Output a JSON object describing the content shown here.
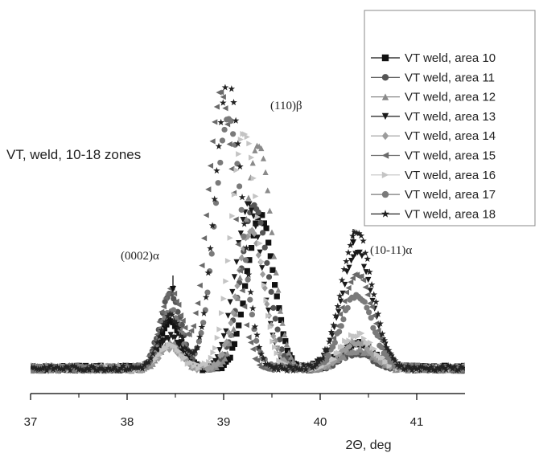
{
  "chart_data": {
    "type": "scatter",
    "title": "",
    "xlabel": "2Θ, deg",
    "ylabel": "",
    "xlim": [
      37,
      41.5
    ],
    "ylim": [
      0,
      1.1
    ],
    "x_ticks": [
      "37",
      "38",
      "39",
      "40",
      "41"
    ],
    "grid": false,
    "legend_position": "top-right",
    "annotations": {
      "zones": "VT, weld, 10-18 zones",
      "peak_beta": "(110)β",
      "peak_alpha_0002": "(0002)α",
      "peak_alpha_1011": "(10-11)α"
    },
    "series": [
      {
        "name": "VT weld, area 10",
        "marker": "square",
        "color": "#111111",
        "beta_center": 39.38,
        "beta_height": 0.58,
        "alpha_0002": 0.18,
        "alpha_1011": 0.1
      },
      {
        "name": "VT weld, area 11",
        "marker": "circle",
        "color": "#555555",
        "beta_center": 39.32,
        "beta_height": 0.62,
        "alpha_0002": 0.28,
        "alpha_1011": 0.06
      },
      {
        "name": "VT weld, area 12",
        "marker": "triangle-up",
        "color": "#8a8a8a",
        "beta_center": 39.36,
        "beta_height": 0.85,
        "alpha_0002": 0.1,
        "alpha_1011": 0.07
      },
      {
        "name": "VT weld, area 13",
        "marker": "triangle-down",
        "color": "#1a1a1a",
        "beta_center": 39.26,
        "beta_height": 0.62,
        "alpha_0002": 0.12,
        "alpha_1011": 0.44
      },
      {
        "name": "VT weld, area 14",
        "marker": "diamond",
        "color": "#9c9c9c",
        "beta_center": 39.28,
        "beta_height": 0.52,
        "alpha_0002": 0.08,
        "alpha_1011": 0.1
      },
      {
        "name": "VT weld, area 15",
        "marker": "triangle-left",
        "color": "#6a6a6a",
        "beta_center": 38.97,
        "beta_height": 1.05,
        "alpha_0002": 0.3,
        "alpha_1011": 0.36
      },
      {
        "name": "VT weld, area 16",
        "marker": "triangle-right",
        "color": "#c4c4c4",
        "beta_center": 39.22,
        "beta_height": 0.9,
        "alpha_0002": 0.09,
        "alpha_1011": 0.13
      },
      {
        "name": "VT weld, area 17",
        "marker": "circle",
        "color": "#7a7a7a",
        "beta_center": 39.05,
        "beta_height": 0.95,
        "alpha_0002": 0.22,
        "alpha_1011": 0.28
      },
      {
        "name": "VT weld, area 18",
        "marker": "star",
        "color": "#222222",
        "beta_center": 39.05,
        "beta_height": 1.1,
        "alpha_0002": 0.2,
        "alpha_1011": 0.52
      }
    ]
  }
}
